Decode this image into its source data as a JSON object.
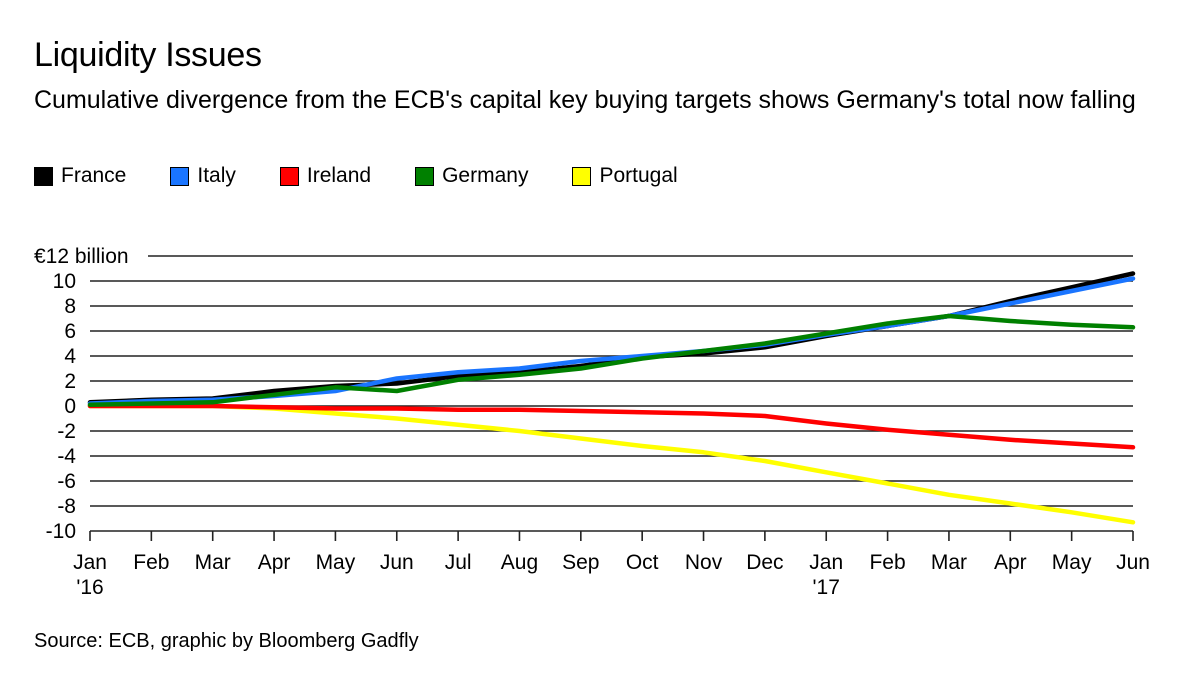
{
  "title": "Liquidity Issues",
  "subtitle": "Cumulative divergence from the ECB's capital key buying targets shows Germany's total now falling",
  "source": "Source: ECB, graphic by Bloomberg Gadfly",
  "chart_data": {
    "type": "line",
    "title": "Liquidity Issues",
    "subtitle": "Cumulative divergence from the ECB's capital key buying targets shows Germany's total now falling",
    "xlabel": "",
    "ylabel": "€ billion",
    "x": [
      "Jan '16",
      "Feb",
      "Mar",
      "Apr",
      "May",
      "Jun",
      "Jul",
      "Aug",
      "Sep",
      "Oct",
      "Nov",
      "Dec",
      "Jan '17",
      "Feb",
      "Mar",
      "Apr",
      "May",
      "Jun"
    ],
    "x_tick_labels": [
      {
        "month": "Jan",
        "year": "'16"
      },
      {
        "month": "Feb",
        "year": ""
      },
      {
        "month": "Mar",
        "year": ""
      },
      {
        "month": "Apr",
        "year": ""
      },
      {
        "month": "May",
        "year": ""
      },
      {
        "month": "Jun",
        "year": ""
      },
      {
        "month": "Jul",
        "year": ""
      },
      {
        "month": "Aug",
        "year": ""
      },
      {
        "month": "Sep",
        "year": ""
      },
      {
        "month": "Oct",
        "year": ""
      },
      {
        "month": "Nov",
        "year": ""
      },
      {
        "month": "Dec",
        "year": ""
      },
      {
        "month": "Jan",
        "year": "'17"
      },
      {
        "month": "Feb",
        "year": ""
      },
      {
        "month": "Mar",
        "year": ""
      },
      {
        "month": "Apr",
        "year": ""
      },
      {
        "month": "May",
        "year": ""
      },
      {
        "month": "Jun",
        "year": ""
      }
    ],
    "y_ticks": [
      12,
      10,
      8,
      6,
      4,
      2,
      0,
      -2,
      -4,
      -6,
      -8,
      -10
    ],
    "y_tick_labels": [
      "€12 billion",
      "10",
      "8",
      "6",
      "4",
      "2",
      "0",
      "-2",
      "-4",
      "-6",
      "-8",
      "-10"
    ],
    "ylim": [
      -10,
      12
    ],
    "grid": true,
    "legend_position": "top-left",
    "series": [
      {
        "name": "France",
        "color": "#000000",
        "values": [
          0.3,
          0.5,
          0.6,
          1.2,
          1.6,
          1.8,
          2.4,
          2.7,
          3.2,
          3.9,
          4.2,
          4.7,
          5.6,
          6.4,
          7.2,
          8.4,
          9.5,
          10.6
        ]
      },
      {
        "name": "Italy",
        "color": "#1a75ff",
        "values": [
          0.2,
          0.4,
          0.5,
          0.8,
          1.2,
          2.2,
          2.7,
          3.0,
          3.6,
          4.0,
          4.4,
          4.9,
          5.7,
          6.4,
          7.2,
          8.2,
          9.2,
          10.2
        ]
      },
      {
        "name": "Ireland",
        "color": "#ff0000",
        "values": [
          0.0,
          0.0,
          0.0,
          -0.1,
          -0.2,
          -0.2,
          -0.3,
          -0.3,
          -0.4,
          -0.5,
          -0.6,
          -0.8,
          -1.4,
          -1.9,
          -2.3,
          -2.7,
          -3.0,
          -3.3
        ]
      },
      {
        "name": "Germany",
        "color": "#008000",
        "values": [
          0.1,
          0.2,
          0.3,
          0.9,
          1.5,
          1.2,
          2.1,
          2.5,
          3.0,
          3.8,
          4.4,
          5.0,
          5.8,
          6.6,
          7.2,
          6.8,
          6.5,
          6.3
        ]
      },
      {
        "name": "Portugal",
        "color": "#ffff00",
        "values": [
          0.0,
          0.0,
          0.0,
          -0.2,
          -0.6,
          -1.0,
          -1.5,
          -2.0,
          -2.6,
          -3.2,
          -3.7,
          -4.4,
          -5.3,
          -6.2,
          -7.1,
          -7.8,
          -8.5,
          -9.3
        ]
      }
    ]
  }
}
